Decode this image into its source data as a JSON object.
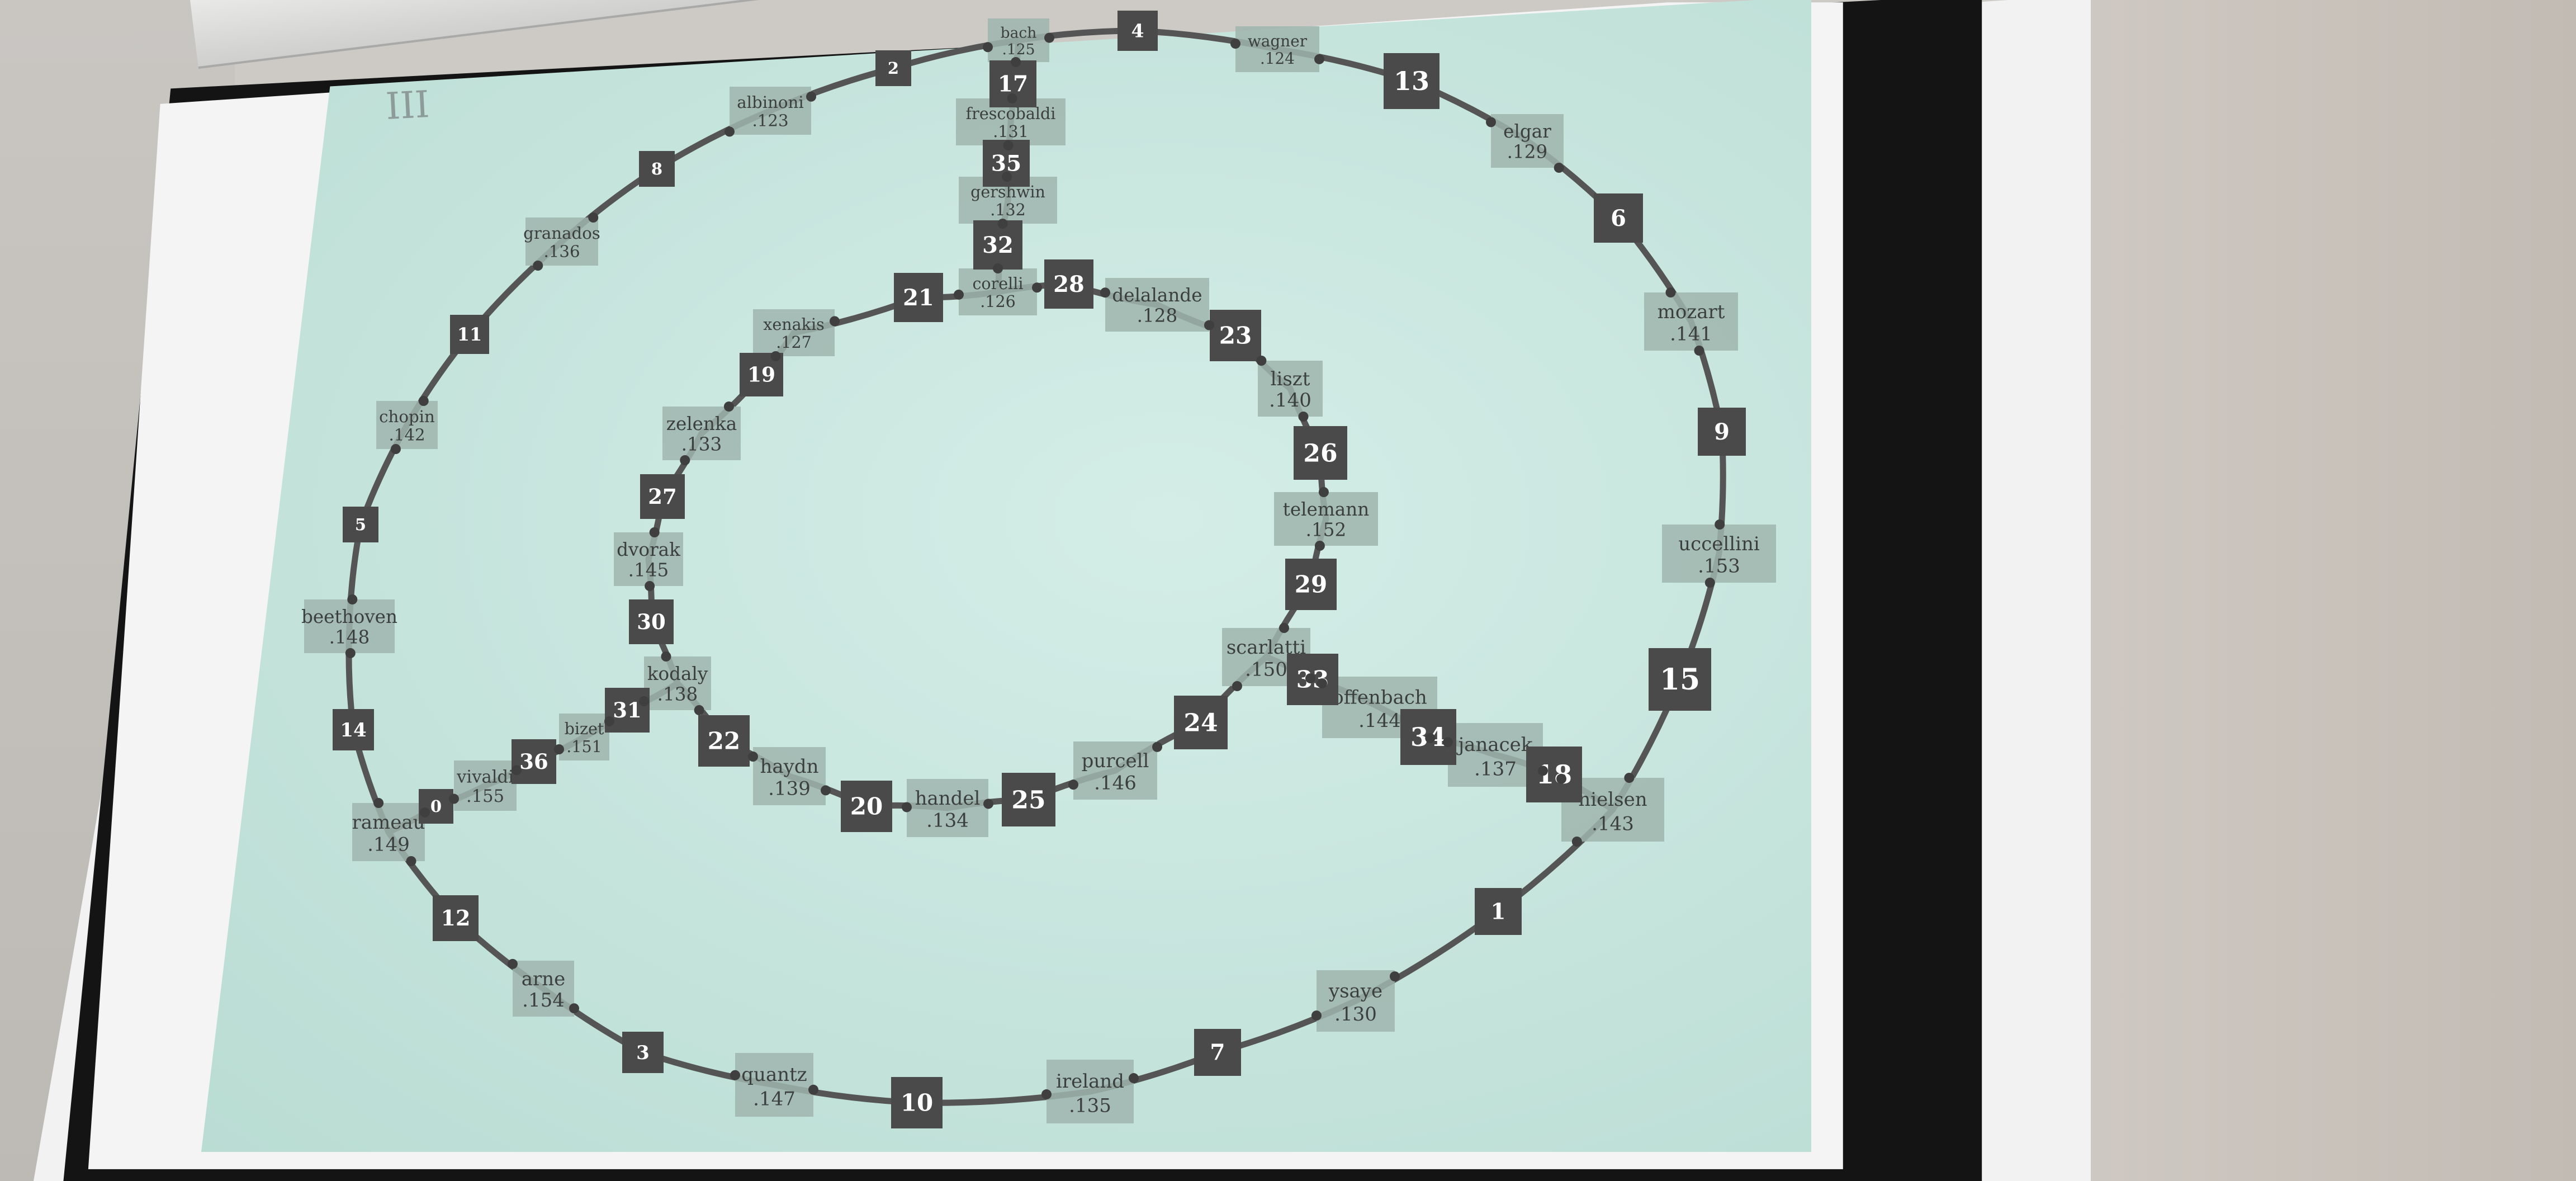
{
  "slide_number": "III",
  "colors": {
    "slide_bg": "#c5e4dc",
    "edge": "#555555",
    "number_box": "#4a4a4a",
    "label_box": "#9fb5ae",
    "label_text": "#3b3f3e"
  },
  "number_nodes": [
    "0",
    "1",
    "2",
    "3",
    "4",
    "5",
    "6",
    "7",
    "8",
    "9",
    "10",
    "11",
    "12",
    "13",
    "14",
    "15",
    "17",
    "18",
    "19",
    "20",
    "21",
    "22",
    "23",
    "24",
    "25",
    "26",
    "27",
    "28",
    "29",
    "30",
    "31",
    "32",
    "33",
    "34",
    "35",
    "36"
  ],
  "composer_nodes": [
    {
      "name": "bach",
      "value": ".125"
    },
    {
      "name": "wagner",
      "value": ".124"
    },
    {
      "name": "albinoni",
      "value": ".123"
    },
    {
      "name": "frescobaldi",
      "value": ".131"
    },
    {
      "name": "gershwin",
      "value": ".132"
    },
    {
      "name": "elgar",
      "value": ".129"
    },
    {
      "name": "granados",
      "value": ".136"
    },
    {
      "name": "corelli",
      "value": ".126"
    },
    {
      "name": "delalande",
      "value": ".128"
    },
    {
      "name": "xenakis",
      "value": ".127"
    },
    {
      "name": "mozart",
      "value": ".141"
    },
    {
      "name": "liszt",
      "value": ".140"
    },
    {
      "name": "chopin",
      "value": ".142"
    },
    {
      "name": "zelenka",
      "value": ".133"
    },
    {
      "name": "telemann",
      "value": ".152"
    },
    {
      "name": "uccellini",
      "value": ".153"
    },
    {
      "name": "dvorak",
      "value": ".145"
    },
    {
      "name": "beethoven",
      "value": ".148"
    },
    {
      "name": "scarlatti",
      "value": ".150"
    },
    {
      "name": "kodaly",
      "value": ".138"
    },
    {
      "name": "offenbach",
      "value": ".144"
    },
    {
      "name": "bizet",
      "value": ".151"
    },
    {
      "name": "janacek",
      "value": ".137"
    },
    {
      "name": "vivaldi",
      "value": ".155"
    },
    {
      "name": "haydn",
      "value": ".139"
    },
    {
      "name": "purcell",
      "value": ".146"
    },
    {
      "name": "rameau",
      "value": ".149"
    },
    {
      "name": "handel",
      "value": ".134"
    },
    {
      "name": "nielsen",
      "value": ".143"
    },
    {
      "name": "arne",
      "value": ".154"
    },
    {
      "name": "ysaye",
      "value": ".130"
    },
    {
      "name": "quantz",
      "value": ".147"
    },
    {
      "name": "ireland",
      "value": ".135"
    }
  ]
}
